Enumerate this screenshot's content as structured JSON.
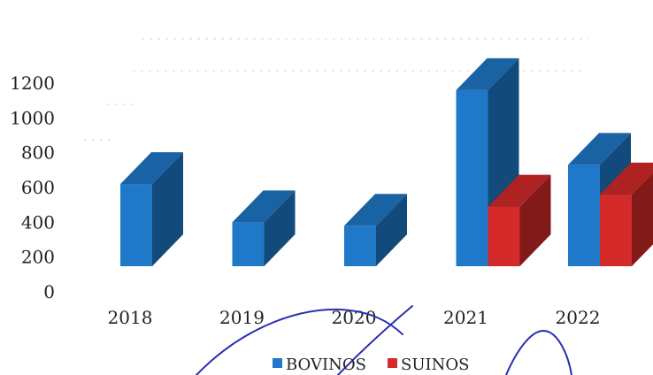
{
  "chart_data": {
    "type": "bar",
    "categories": [
      "2018",
      "2019",
      "2020",
      "2021",
      "2022"
    ],
    "series": [
      {
        "name": "BOVINOS",
        "values": [
          620,
          400,
          380,
          1160,
          730
        ],
        "color": "#1f78c8"
      },
      {
        "name": "SUINOS",
        "values": [
          null,
          null,
          null,
          490,
          560
        ],
        "color": "#d42a2a"
      }
    ],
    "y_ticks": [
      "0",
      "200",
      "400",
      "600",
      "800",
      "1000",
      "1200"
    ],
    "ylim": [
      0,
      1200
    ],
    "legend_placement": "bottom",
    "grid": false,
    "style": "3d-bar",
    "title": "",
    "xlabel": "",
    "ylabel": ""
  }
}
